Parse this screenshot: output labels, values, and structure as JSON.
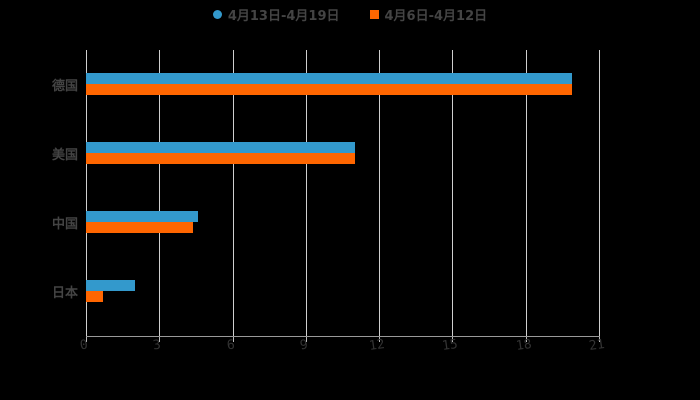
{
  "chart_data": {
    "type": "bar",
    "orientation": "horizontal",
    "title": "",
    "categories": [
      "德国",
      "美国",
      "中国",
      "日本"
    ],
    "series": [
      {
        "name": "4月13日-4月19日",
        "color": "#3399cc",
        "values": [
          19.9,
          11.0,
          4.6,
          2.0
        ]
      },
      {
        "name": "4月6日-4月12日",
        "color": "#ff6600",
        "values": [
          19.9,
          11.0,
          4.4,
          0.7
        ]
      }
    ],
    "xlabel": "",
    "ylabel": "",
    "xlim": [
      0,
      21
    ],
    "xticks": [
      "0",
      "3",
      "6",
      "9",
      "12",
      "15",
      "18",
      "21"
    ],
    "grid": true,
    "legend_position": "top"
  },
  "legend": [
    {
      "label": "4月13日-4月19日",
      "color": "#3399cc"
    },
    {
      "label": "4月6日-4月12日",
      "color": "#ff6600"
    }
  ]
}
